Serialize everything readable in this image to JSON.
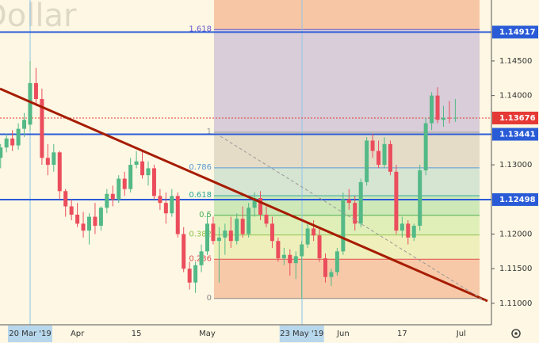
{
  "chart_data": {
    "type": "candlestick",
    "title": "Dollar",
    "categories": [
      null,
      null,
      null,
      null,
      null,
      "20 Mar '19",
      null,
      null,
      null,
      null,
      null,
      null,
      null,
      "Apr",
      null,
      null,
      null,
      null,
      null,
      null,
      null,
      null,
      null,
      "15",
      null,
      null,
      null,
      null,
      null,
      null,
      null,
      null,
      null,
      null,
      null,
      "May",
      null,
      null,
      null,
      null,
      null,
      null,
      null,
      null,
      null,
      null,
      null,
      null,
      null,
      null,
      null,
      "23 May '19",
      null,
      null,
      null,
      null,
      null,
      null,
      "Jun",
      null,
      null,
      null,
      null,
      null,
      null,
      null,
      null,
      null,
      "17",
      null,
      null,
      null,
      null,
      null,
      null,
      null,
      null,
      null,
      "Jul"
    ],
    "open": [
      1.131,
      1.1325,
      1.1338,
      1.1328,
      1.1352,
      1.1358,
      1.1418,
      1.1395,
      1.131,
      1.13,
      1.1318,
      1.1262,
      1.124,
      1.1228,
      1.1215,
      1.1205,
      1.1225,
      1.1212,
      1.1238,
      1.1258,
      1.125,
      1.128,
      1.1265,
      1.13,
      1.1305,
      1.1285,
      1.1295,
      1.1255,
      1.1245,
      1.123,
      1.1255,
      1.12,
      1.115,
      1.113,
      1.1155,
      1.1175,
      1.1215,
      1.119,
      1.1195,
      1.1205,
      1.119,
      1.1222,
      1.12,
      1.1238,
      1.1252,
      1.1228,
      1.1215,
      1.119,
      1.1165,
      1.117,
      1.1158,
      1.1168,
      1.1185,
      1.1208,
      1.1198,
      1.1165,
      1.1138,
      1.1145,
      1.1175,
      1.125,
      1.1245,
      1.1215,
      1.1275,
      1.1335,
      1.132,
      1.13,
      1.133,
      1.129,
      1.1205,
      1.1215,
      1.1195,
      1.1212,
      1.1292,
      1.136,
      1.14,
      1.1365,
      1.1368,
      1.1367,
      null
    ],
    "high": [
      1.133,
      1.1345,
      1.135,
      1.136,
      1.1375,
      1.145,
      1.144,
      1.141,
      1.133,
      1.133,
      1.132,
      1.1265,
      1.125,
      1.1245,
      1.1232,
      1.123,
      1.1245,
      1.124,
      1.1265,
      1.127,
      1.1285,
      1.129,
      1.131,
      1.132,
      1.132,
      1.1305,
      1.13,
      1.1265,
      1.126,
      1.1265,
      1.126,
      1.121,
      1.116,
      1.116,
      1.1185,
      1.123,
      1.1225,
      1.121,
      1.1215,
      1.1225,
      1.123,
      1.124,
      1.1245,
      1.126,
      1.1262,
      1.124,
      1.1225,
      1.1195,
      1.118,
      1.1178,
      1.1175,
      1.119,
      1.1215,
      1.122,
      1.121,
      1.1172,
      1.115,
      1.118,
      1.126,
      1.1265,
      1.1255,
      1.128,
      1.134,
      1.1345,
      1.1335,
      1.134,
      1.1335,
      1.13,
      1.1225,
      1.122,
      1.1215,
      1.13,
      1.1368,
      1.1405,
      1.1412,
      1.1385,
      1.1392,
      1.1395,
      null
    ],
    "low": [
      1.1295,
      1.1318,
      1.132,
      1.1322,
      1.134,
      1.135,
      1.1385,
      1.13,
      1.1285,
      1.129,
      1.125,
      1.1225,
      1.122,
      1.121,
      1.1195,
      1.1185,
      1.12,
      1.1205,
      1.123,
      1.124,
      1.1245,
      1.1255,
      1.126,
      1.1295,
      1.128,
      1.127,
      1.125,
      1.1235,
      1.1215,
      1.1225,
      1.1195,
      1.1145,
      1.112,
      1.1115,
      1.1145,
      1.117,
      1.1185,
      1.113,
      1.117,
      1.118,
      1.1185,
      1.1195,
      1.1195,
      1.1225,
      1.122,
      1.121,
      1.118,
      1.116,
      1.1155,
      1.114,
      1.1135,
      1.1107,
      1.118,
      1.119,
      1.116,
      1.113,
      1.1125,
      1.114,
      1.117,
      1.1235,
      1.1205,
      1.121,
      1.127,
      1.131,
      1.1295,
      1.1295,
      1.1285,
      1.12,
      1.1195,
      1.1185,
      1.119,
      1.1205,
      1.1285,
      1.135,
      1.136,
      1.1355,
      1.136,
      1.1362,
      null
    ],
    "close": [
      1.1325,
      1.1338,
      1.1328,
      1.1352,
      1.1365,
      1.1418,
      1.1395,
      1.131,
      1.13,
      1.1318,
      1.1262,
      1.124,
      1.1228,
      1.1215,
      1.1205,
      1.1225,
      1.1212,
      1.1238,
      1.1258,
      1.125,
      1.128,
      1.1265,
      1.13,
      1.1305,
      1.1285,
      1.1295,
      1.1255,
      1.1245,
      1.123,
      1.1255,
      1.12,
      1.115,
      1.113,
      1.1155,
      1.1175,
      1.1215,
      1.119,
      1.1195,
      1.1205,
      1.119,
      1.1222,
      1.12,
      1.1238,
      1.1252,
      1.1228,
      1.1215,
      1.119,
      1.1165,
      1.117,
      1.1158,
      1.1168,
      1.1185,
      1.1208,
      1.1198,
      1.1165,
      1.1138,
      1.1145,
      1.1175,
      1.125,
      1.1245,
      1.1215,
      1.1275,
      1.1335,
      1.132,
      1.13,
      1.133,
      1.129,
      1.1205,
      1.1215,
      1.1195,
      1.1212,
      1.1292,
      1.136,
      1.14,
      1.1365,
      1.1368,
      1.1367,
      1.1368,
      null
    ],
    "up_color": "#53b987",
    "down_color": "#eb4d5c",
    "ylim": [
      1.1069,
      1.1538
    ],
    "yticks": [
      {
        "value": 1.145,
        "label": "1.14500"
      },
      {
        "value": 1.14,
        "label": "1.14000"
      },
      {
        "value": 1.13,
        "label": "1.13000"
      },
      {
        "value": 1.12,
        "label": "1.12000"
      },
      {
        "value": 1.115,
        "label": "1.11500"
      },
      {
        "value": 1.11,
        "label": "1.11000"
      }
    ],
    "price_lines": [
      {
        "value": 1.14917,
        "color": "#2a5bd7"
      },
      {
        "value": 1.13676,
        "color": "#e53935"
      },
      {
        "value": 1.13441,
        "color": "#2a5bd7"
      },
      {
        "value": 1.12498,
        "color": "#2a5bd7"
      }
    ],
    "fib": {
      "low": 1.1107,
      "high": 1.1347,
      "levels": [
        1.618,
        1,
        0.786,
        0.618,
        0.5,
        0.382,
        0.236,
        0
      ],
      "colors": [
        "#6a5acd",
        "#999999",
        "#5b9bd5",
        "#26a69a",
        "#4caf50",
        "#8bc34a",
        "#e05050",
        "#888888"
      ],
      "fills": [
        "#d8cdd8",
        "#e5dcc8",
        "#d6e4d2",
        "#cfe8b8",
        "#e0efb8",
        "#efefbb",
        "#f7c9a8"
      ],
      "top_fill": "#f7c7a5"
    }
  }
}
